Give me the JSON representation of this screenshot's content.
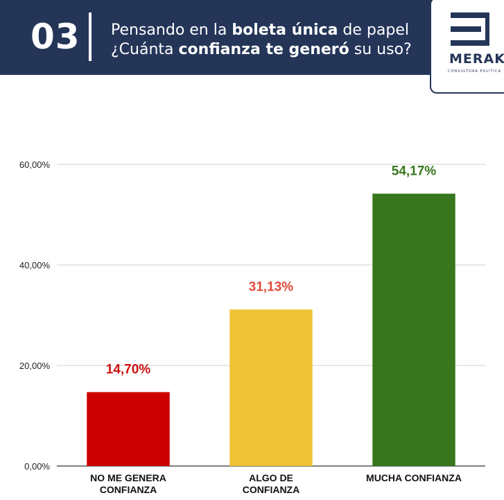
{
  "header": {
    "number": "03",
    "line1_a": "Pensando en la ",
    "line1_b": "boleta única",
    "line1_c": " de papel",
    "line2_a": "¿Cuánta ",
    "line2_b": "confianza te generó",
    "line2_c": " su uso?"
  },
  "logo": {
    "word": "MERAKI",
    "subtitle": "CONSULTORA POLÍTICA"
  },
  "colors": {
    "header_bg": "#243558"
  },
  "chart_data": {
    "type": "bar",
    "title": "",
    "xlabel": "",
    "ylabel": "",
    "ylim": [
      0,
      60
    ],
    "yticks": [
      0,
      20,
      40,
      60
    ],
    "ytick_labels": [
      "0,00%",
      "20,00%",
      "40,00%",
      "60,00%"
    ],
    "categories": [
      [
        "NO ME GENERA",
        "CONFIANZA"
      ],
      [
        "ALGO DE",
        "CONFIANZA"
      ],
      [
        "MUCHA CONFIANZA"
      ]
    ],
    "values": [
      14.7,
      31.13,
      54.17
    ],
    "value_labels": [
      "14,70%",
      "31,13%",
      "54,17%"
    ],
    "bar_colors": [
      "#cc0000",
      "#efc236",
      "#38761d"
    ],
    "label_colors": [
      "#cc1111",
      "#e04a3a",
      "#38761d"
    ]
  }
}
